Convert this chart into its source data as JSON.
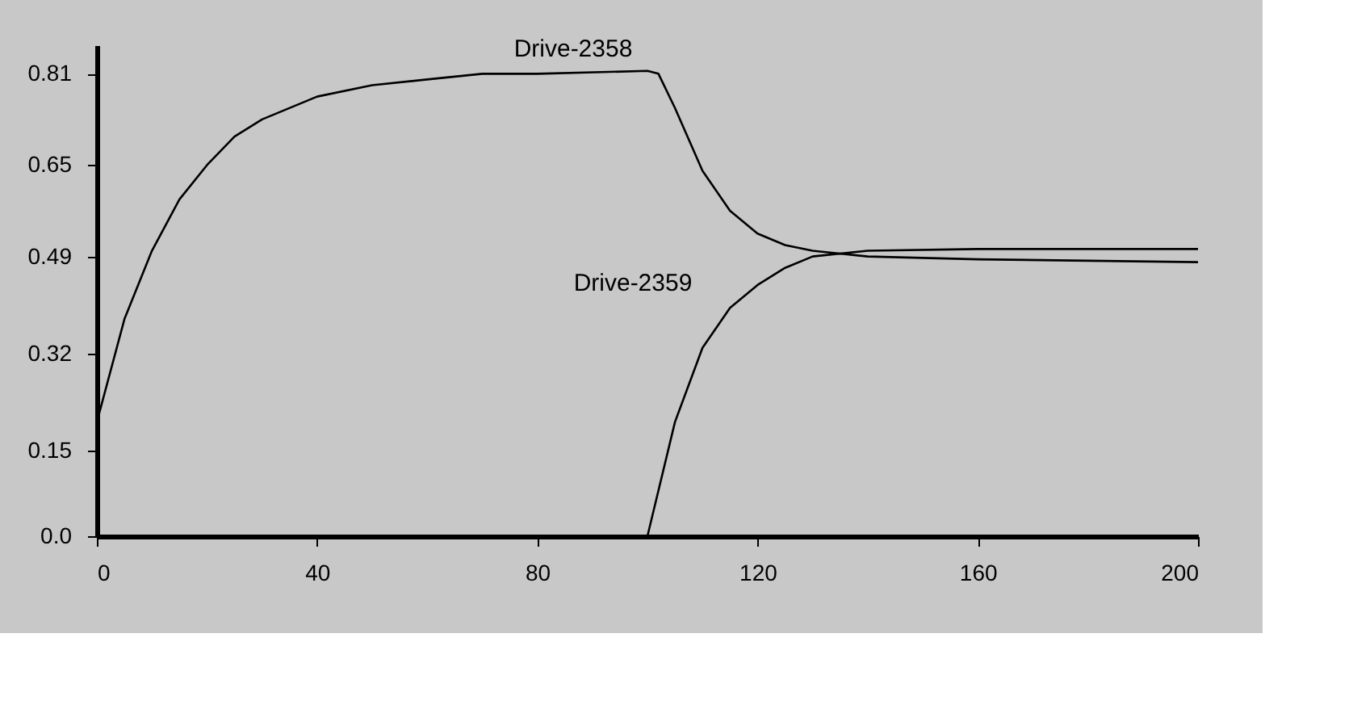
{
  "chart_data": {
    "type": "line",
    "series": [
      {
        "color": "#000000",
        "x": [
          0,
          5,
          10,
          15,
          20,
          25,
          30,
          40,
          50,
          60,
          70,
          80,
          100,
          102,
          105,
          110,
          115,
          120,
          125,
          130,
          140,
          160,
          200
        ],
        "values": [
          0.2,
          0.38,
          0.5,
          0.59,
          0.65,
          0.7,
          0.73,
          0.77,
          0.79,
          0.8,
          0.81,
          0.81,
          0.815,
          0.81,
          0.75,
          0.64,
          0.57,
          0.53,
          0.51,
          0.5,
          0.49,
          0.485,
          0.48
        ]
      },
      {
        "color": "#000000",
        "x": [
          0,
          100,
          105,
          110,
          115,
          120,
          125,
          130,
          140,
          160,
          200
        ],
        "values": [
          0,
          0,
          0.2,
          0.33,
          0.4,
          0.44,
          0.47,
          0.49,
          0.5,
          0.503,
          0.503
        ]
      }
    ],
    "annotations": [
      "Drive-2358",
      "Drive-2359"
    ],
    "xlim": [
      0,
      200
    ],
    "xticks": [
      0,
      40,
      80,
      120,
      160,
      200
    ],
    "ylim": [
      0,
      0.86
    ],
    "yticks": [
      {
        "value": 0,
        "label": "0.0"
      },
      0.15,
      0.32,
      0.49,
      0.65,
      0.81
    ],
    "grid": false,
    "marker": "none",
    "line_style": "solid"
  }
}
